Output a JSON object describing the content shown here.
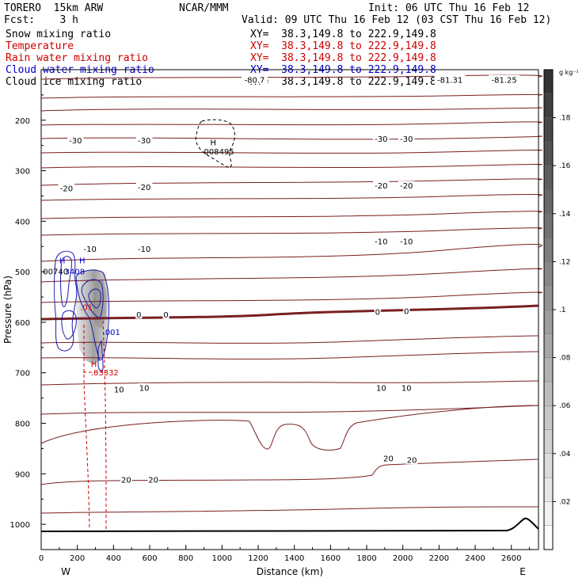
{
  "header": {
    "model": "TORERO  15km ARW",
    "fcst": "Fcst:    3 h",
    "org": "NCAR/MMM",
    "init": "Init: 06 UTC Thu 16 Feb 12",
    "valid": "Valid: 09 UTC Thu 16 Feb 12 (03 CST Thu 16 Feb 12)"
  },
  "fields": [
    {
      "name": "Snow mixing ratio",
      "xy": "XY=  38.3,149.8 to 222.9,149.8",
      "color": "#000000"
    },
    {
      "name": "Temperature",
      "xy": "XY=  38.3,149.8 to 222.9,149.8",
      "color": "#cc0000"
    },
    {
      "name": "Rain water mixing ratio",
      "xy": "XY=  38.3,149.8 to 222.9,149.8",
      "color": "#cc0000"
    },
    {
      "name": "Cloud water mixing ratio",
      "xy": "XY=  38.3,149.8 to 222.9,149.8",
      "color": "#0000cc"
    },
    {
      "name": "Cloud ice mixing ratio",
      "xy": "XY=  38.3,149.8 to 222.9,149.8",
      "color": "#000000"
    }
  ],
  "chart_data": {
    "type": "cross-section contour",
    "xlabel": "Distance (km)",
    "ylabel": "Pressure (hPa)",
    "xlim": [
      0,
      2750
    ],
    "ylim": [
      1050,
      100
    ],
    "x_ticks": [
      0,
      200,
      400,
      600,
      800,
      1000,
      1200,
      1400,
      1600,
      1800,
      2000,
      2200,
      2400,
      2600
    ],
    "y_ticks": [
      200,
      300,
      400,
      500,
      600,
      700,
      800,
      900,
      1000
    ],
    "end_labels": {
      "left": "W",
      "right": "E"
    },
    "colorbar": {
      "unit": "g kg⁻¹",
      "ticks": [
        ".02",
        ".04",
        ".06",
        ".08",
        ".1",
        ".12",
        ".14",
        ".16",
        ".18"
      ],
      "levels": 20
    },
    "temperature_labels": [
      {
        "label": "-80.7",
        "x": 1180,
        "p": 120
      },
      {
        "label": "-81.31",
        "x": 2260,
        "p": 120
      },
      {
        "label": "-81.25",
        "x": 2560,
        "p": 120
      },
      {
        "label": "-30",
        "x": 190,
        "p": 240
      },
      {
        "label": "-30",
        "x": 570,
        "p": 240
      },
      {
        "label": "-30",
        "x": 1880,
        "p": 237
      },
      {
        "label": "-30",
        "x": 2020,
        "p": 237
      },
      {
        "label": "-20",
        "x": 140,
        "p": 335
      },
      {
        "label": "-20",
        "x": 570,
        "p": 333
      },
      {
        "label": "-20",
        "x": 1880,
        "p": 330
      },
      {
        "label": "-20",
        "x": 2020,
        "p": 330
      },
      {
        "label": "-10",
        "x": 270,
        "p": 455
      },
      {
        "label": "-10",
        "x": 570,
        "p": 455
      },
      {
        "label": "-10",
        "x": 1880,
        "p": 440
      },
      {
        "label": "-10",
        "x": 2020,
        "p": 440
      },
      {
        "label": "0",
        "x": 540,
        "p": 585
      },
      {
        "label": "0",
        "x": 690,
        "p": 585
      },
      {
        "label": "0",
        "x": 1860,
        "p": 580
      },
      {
        "label": "0",
        "x": 2020,
        "p": 578
      },
      {
        "label": "10",
        "x": 430,
        "p": 733
      },
      {
        "label": "10",
        "x": 570,
        "p": 730
      },
      {
        "label": "10",
        "x": 1880,
        "p": 730
      },
      {
        "label": "10",
        "x": 2020,
        "p": 730
      },
      {
        "label": "20",
        "x": 470,
        "p": 912
      },
      {
        "label": "20",
        "x": 620,
        "p": 912
      },
      {
        "label": "20",
        "x": 1920,
        "p": 870
      },
      {
        "label": "20",
        "x": 2050,
        "p": 873
      }
    ],
    "annotations": [
      {
        "text": "H",
        "x": 935,
        "p": 244,
        "color": "#000000"
      },
      {
        "text": "008495",
        "x": 900,
        "p": 262,
        "color": "#000000"
      },
      {
        "text": "H",
        "x": 100,
        "p": 478,
        "color": "#0000cc"
      },
      {
        "text": "H",
        "x": 210,
        "p": 478,
        "color": "#0000cc"
      },
      {
        "text": "00740",
        "x": 10,
        "p": 500,
        "color": "#000000"
      },
      {
        "text": "3408",
        "x": 130,
        "p": 500,
        "color": "#0000cc"
      },
      {
        "text": ".01",
        "x": 215,
        "p": 570,
        "color": "#cc0000"
      },
      {
        "text": ".001",
        "x": 340,
        "p": 620,
        "color": "#0000cc"
      },
      {
        "text": "H",
        "x": 275,
        "p": 683,
        "color": "#cc0000"
      },
      {
        "text": ".03332",
        "x": 275,
        "p": 700,
        "color": "#cc0000"
      }
    ]
  }
}
